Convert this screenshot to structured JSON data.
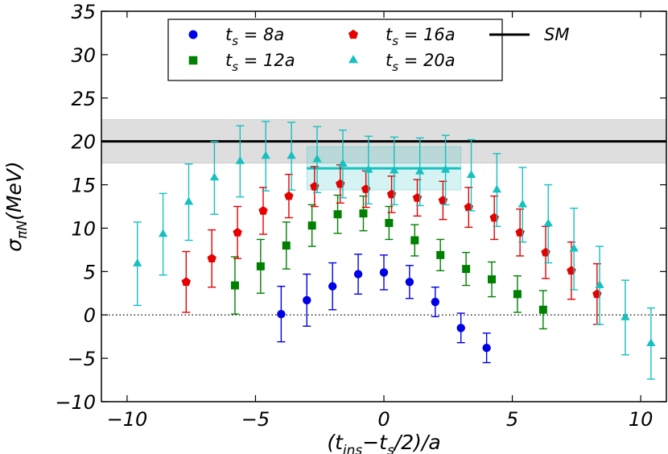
{
  "chart_data": {
    "type": "scatter",
    "title": "",
    "xlabel": "(t_ins−t_s/2)/a",
    "ylabel": "σ_πN(MeV)",
    "xlim": [
      -11,
      11
    ],
    "ylim": [
      -10,
      35
    ],
    "xticks": [
      -10,
      -5,
      0,
      5,
      10
    ],
    "xtick_labels": [
      "−10",
      "−5",
      "0",
      "5",
      "10"
    ],
    "yticks": [
      -10,
      -5,
      0,
      5,
      10,
      15,
      20,
      25,
      30,
      35
    ],
    "ytick_labels": [
      "−10",
      "−5",
      "0",
      "5",
      "10",
      "15",
      "20",
      "25",
      "30",
      "35"
    ],
    "zero_line": {
      "y": 0,
      "style": "dotted"
    },
    "sm_band": {
      "name": "SM",
      "value": 20,
      "lower": 17.5,
      "upper": 22.5,
      "color": "#000000",
      "band_color": "#d9d9d9"
    },
    "fit_band": {
      "xmin": -3,
      "xmax": 3,
      "value": 16.9,
      "lower": 14.4,
      "upper": 19.4,
      "color": "#17bfbf"
    },
    "legend": {
      "position": "top-center",
      "entries": [
        {
          "series": "ts8",
          "sub": "s",
          "rest": " =  8a"
        },
        {
          "series": "ts16",
          "sub": "s",
          "rest": " = 16a"
        },
        {
          "series": "sm",
          "label": "SM"
        },
        {
          "series": "ts12",
          "sub": "s",
          "rest": " = 12a"
        },
        {
          "series": "ts20",
          "sub": "s",
          "rest": " = 20a"
        }
      ]
    },
    "series": [
      {
        "id": "ts8",
        "name": "t_s = 8a",
        "marker": "circle",
        "color": "#0000e6",
        "points": [
          {
            "x": -4,
            "y": 0.1,
            "err": 3.2
          },
          {
            "x": -3,
            "y": 1.7,
            "err": 3.0
          },
          {
            "x": -2,
            "y": 3.3,
            "err": 2.7
          },
          {
            "x": -1,
            "y": 4.7,
            "err": 2.3
          },
          {
            "x": 0,
            "y": 4.9,
            "err": 2.0
          },
          {
            "x": 1,
            "y": 3.8,
            "err": 1.9
          },
          {
            "x": 2,
            "y": 1.5,
            "err": 1.7
          },
          {
            "x": 3,
            "y": -1.5,
            "err": 1.7
          },
          {
            "x": 4,
            "y": -3.8,
            "err": 1.7
          }
        ]
      },
      {
        "id": "ts12",
        "name": "t_s = 12a",
        "marker": "square",
        "color": "#008000",
        "points": [
          {
            "x": -5.8,
            "y": 3.4,
            "err": 3.3
          },
          {
            "x": -4.8,
            "y": 5.6,
            "err": 3.1
          },
          {
            "x": -3.8,
            "y": 8.0,
            "err": 2.7
          },
          {
            "x": -2.8,
            "y": 10.3,
            "err": 2.4
          },
          {
            "x": -1.8,
            "y": 11.6,
            "err": 2.2
          },
          {
            "x": -0.8,
            "y": 11.7,
            "err": 2.0
          },
          {
            "x": 0.2,
            "y": 10.6,
            "err": 1.9
          },
          {
            "x": 1.2,
            "y": 8.6,
            "err": 1.8
          },
          {
            "x": 2.2,
            "y": 6.9,
            "err": 1.8
          },
          {
            "x": 3.2,
            "y": 5.3,
            "err": 1.9
          },
          {
            "x": 4.2,
            "y": 4.1,
            "err": 2.0
          },
          {
            "x": 5.2,
            "y": 2.4,
            "err": 2.1
          },
          {
            "x": 6.2,
            "y": 0.6,
            "err": 2.2
          }
        ]
      },
      {
        "id": "ts16",
        "name": "t_s = 16a",
        "marker": "pentagon",
        "color": "#e60000",
        "points": [
          {
            "x": -7.7,
            "y": 3.8,
            "err": 3.5
          },
          {
            "x": -6.7,
            "y": 6.5,
            "err": 3.3
          },
          {
            "x": -5.7,
            "y": 9.5,
            "err": 3.0
          },
          {
            "x": -4.7,
            "y": 12.0,
            "err": 2.7
          },
          {
            "x": -3.7,
            "y": 13.7,
            "err": 2.5
          },
          {
            "x": -2.7,
            "y": 14.8,
            "err": 2.3
          },
          {
            "x": -1.7,
            "y": 15.1,
            "err": 2.2
          },
          {
            "x": -0.7,
            "y": 14.5,
            "err": 2.1
          },
          {
            "x": 0.3,
            "y": 13.9,
            "err": 2.1
          },
          {
            "x": 1.3,
            "y": 13.5,
            "err": 2.1
          },
          {
            "x": 2.3,
            "y": 13.2,
            "err": 2.2
          },
          {
            "x": 3.3,
            "y": 12.4,
            "err": 2.3
          },
          {
            "x": 4.3,
            "y": 11.2,
            "err": 2.5
          },
          {
            "x": 5.3,
            "y": 9.5,
            "err": 2.7
          },
          {
            "x": 6.3,
            "y": 7.2,
            "err": 3.0
          },
          {
            "x": 7.3,
            "y": 5.1,
            "err": 3.3
          },
          {
            "x": 8.3,
            "y": 2.4,
            "err": 3.5
          }
        ]
      },
      {
        "id": "ts20",
        "name": "t_s = 20a",
        "marker": "triangle",
        "color": "#17bfbf",
        "points": [
          {
            "x": -9.6,
            "y": 5.9,
            "err": 4.8
          },
          {
            "x": -8.6,
            "y": 9.3,
            "err": 4.7
          },
          {
            "x": -7.6,
            "y": 13.0,
            "err": 4.4
          },
          {
            "x": -6.6,
            "y": 15.8,
            "err": 4.2
          },
          {
            "x": -5.6,
            "y": 17.7,
            "err": 4.1
          },
          {
            "x": -4.6,
            "y": 18.3,
            "err": 4.0
          },
          {
            "x": -3.6,
            "y": 18.3,
            "err": 3.9
          },
          {
            "x": -2.6,
            "y": 17.9,
            "err": 3.8
          },
          {
            "x": -1.6,
            "y": 17.4,
            "err": 3.9
          },
          {
            "x": -0.6,
            "y": 16.7,
            "err": 3.9
          },
          {
            "x": 0.4,
            "y": 16.6,
            "err": 3.9
          },
          {
            "x": 1.4,
            "y": 16.5,
            "err": 3.9
          },
          {
            "x": 2.4,
            "y": 16.7,
            "err": 4.0
          },
          {
            "x": 3.4,
            "y": 16.1,
            "err": 4.1
          },
          {
            "x": 4.4,
            "y": 14.4,
            "err": 4.2
          },
          {
            "x": 5.4,
            "y": 12.7,
            "err": 4.3
          },
          {
            "x": 6.4,
            "y": 10.5,
            "err": 4.5
          },
          {
            "x": 7.4,
            "y": 7.6,
            "err": 4.7
          },
          {
            "x": 8.4,
            "y": 3.4,
            "err": 4.5
          },
          {
            "x": 9.4,
            "y": -0.3,
            "err": 4.3
          },
          {
            "x": 10.4,
            "y": -3.3,
            "err": 4.1
          }
        ]
      }
    ]
  }
}
